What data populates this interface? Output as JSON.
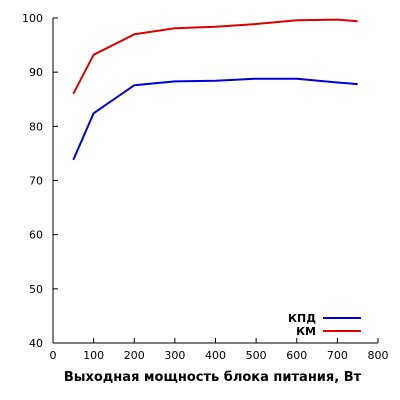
{
  "chart_data": {
    "type": "line",
    "xlabel": "Выходная мощность блока питания, Вт",
    "ylabel": "",
    "xlim": [
      0,
      800
    ],
    "ylim": [
      40,
      100
    ],
    "x_ticks": [
      0,
      100,
      200,
      300,
      400,
      500,
      600,
      700,
      800
    ],
    "y_ticks": [
      40,
      50,
      60,
      70,
      80,
      90,
      100
    ],
    "grid": false,
    "legend_position": "bottom-right",
    "series": [
      {
        "name": "КПД",
        "color": "#0000dd",
        "x": [
          50,
          100,
          200,
          300,
          400,
          500,
          600,
          700,
          750
        ],
        "y": [
          73.8,
          82.4,
          87.6,
          88.3,
          88.4,
          88.8,
          88.8,
          88.1,
          87.8
        ]
      },
      {
        "name": "КМ",
        "color": "#dd0000",
        "x": [
          50,
          100,
          200,
          300,
          400,
          500,
          600,
          700,
          750
        ],
        "y": [
          86.0,
          93.2,
          97.0,
          98.1,
          98.4,
          98.9,
          99.6,
          99.7,
          99.4
        ]
      }
    ]
  }
}
